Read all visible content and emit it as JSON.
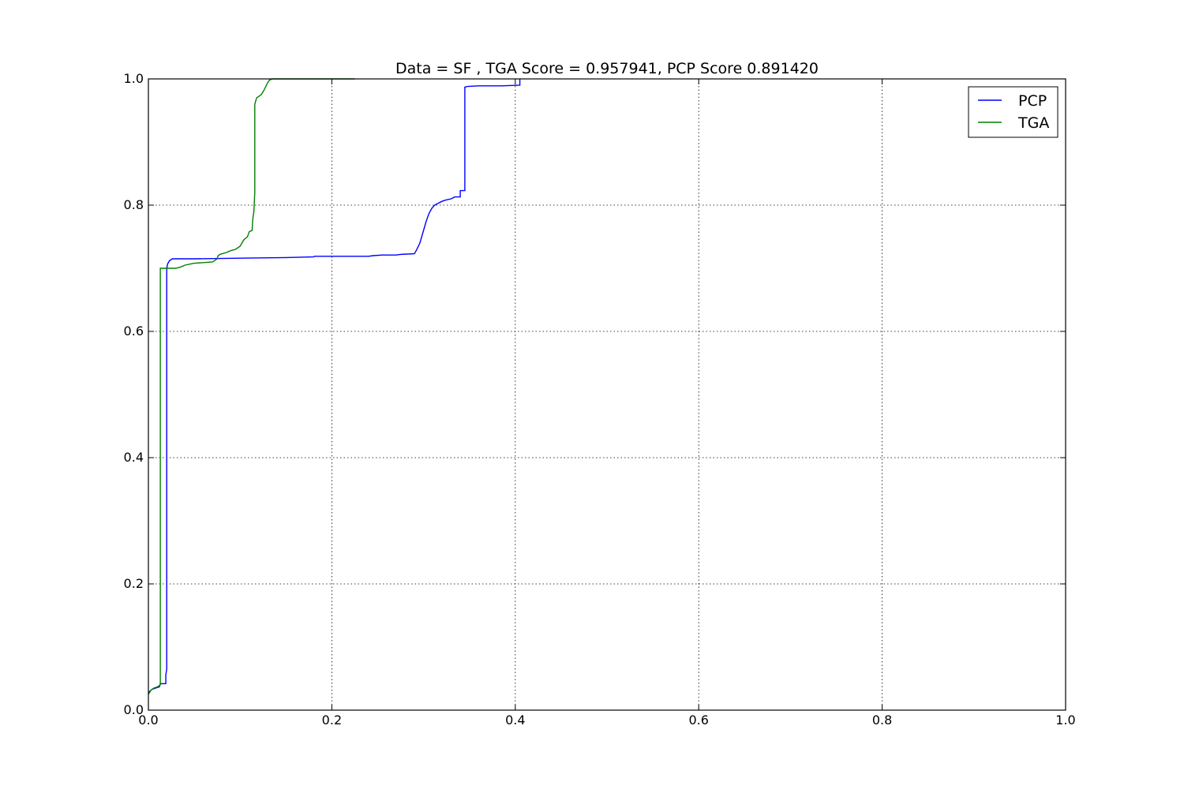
{
  "chart_data": {
    "type": "line",
    "title": "Data = SF , TGA Score = 0.957941, PCP Score 0.891420",
    "xlabel": "",
    "ylabel": "",
    "xlim": [
      0.0,
      1.0
    ],
    "ylim": [
      0.0,
      1.0
    ],
    "x_ticks": [
      "0.0",
      "0.2",
      "0.4",
      "0.6",
      "0.8",
      "1.0"
    ],
    "y_ticks": [
      "0.0",
      "0.2",
      "0.4",
      "0.6",
      "0.8",
      "1.0"
    ],
    "grid": true,
    "legend_position": "top-right",
    "legend": [
      "PCP",
      "TGA"
    ],
    "series": [
      {
        "name": "PCP",
        "color": "#0000ff",
        "points": [
          [
            0.0,
            0.028
          ],
          [
            0.004,
            0.033
          ],
          [
            0.008,
            0.035
          ],
          [
            0.012,
            0.037
          ],
          [
            0.013,
            0.042
          ],
          [
            0.019,
            0.042
          ],
          [
            0.019,
            0.056
          ],
          [
            0.02,
            0.065
          ],
          [
            0.02,
            0.7
          ],
          [
            0.021,
            0.707
          ],
          [
            0.023,
            0.712
          ],
          [
            0.026,
            0.715
          ],
          [
            0.05,
            0.715
          ],
          [
            0.1,
            0.716
          ],
          [
            0.15,
            0.717
          ],
          [
            0.18,
            0.718
          ],
          [
            0.181,
            0.719
          ],
          [
            0.24,
            0.719
          ],
          [
            0.245,
            0.72
          ],
          [
            0.255,
            0.721
          ],
          [
            0.27,
            0.721
          ],
          [
            0.275,
            0.722
          ],
          [
            0.29,
            0.723
          ],
          [
            0.292,
            0.728
          ],
          [
            0.296,
            0.74
          ],
          [
            0.3,
            0.76
          ],
          [
            0.303,
            0.775
          ],
          [
            0.306,
            0.787
          ],
          [
            0.309,
            0.795
          ],
          [
            0.312,
            0.8
          ],
          [
            0.316,
            0.803
          ],
          [
            0.32,
            0.806
          ],
          [
            0.324,
            0.808
          ],
          [
            0.33,
            0.81
          ],
          [
            0.334,
            0.813
          ],
          [
            0.34,
            0.813
          ],
          [
            0.34,
            0.823
          ],
          [
            0.345,
            0.823
          ],
          [
            0.345,
            0.987
          ],
          [
            0.348,
            0.988
          ],
          [
            0.36,
            0.989
          ],
          [
            0.385,
            0.989
          ],
          [
            0.405,
            0.99
          ],
          [
            0.405,
            1.0
          ]
        ]
      },
      {
        "name": "TGA",
        "color": "#008000",
        "points": [
          [
            0.0,
            0.025
          ],
          [
            0.003,
            0.032
          ],
          [
            0.006,
            0.035
          ],
          [
            0.01,
            0.037
          ],
          [
            0.013,
            0.04
          ],
          [
            0.013,
            0.7
          ],
          [
            0.02,
            0.7
          ],
          [
            0.03,
            0.7
          ],
          [
            0.035,
            0.702
          ],
          [
            0.04,
            0.705
          ],
          [
            0.05,
            0.708
          ],
          [
            0.06,
            0.709
          ],
          [
            0.07,
            0.71
          ],
          [
            0.072,
            0.712
          ],
          [
            0.075,
            0.715
          ],
          [
            0.076,
            0.72
          ],
          [
            0.078,
            0.722
          ],
          [
            0.085,
            0.725
          ],
          [
            0.09,
            0.728
          ],
          [
            0.095,
            0.73
          ],
          [
            0.1,
            0.735
          ],
          [
            0.104,
            0.745
          ],
          [
            0.108,
            0.75
          ],
          [
            0.11,
            0.758
          ],
          [
            0.113,
            0.76
          ],
          [
            0.114,
            0.78
          ],
          [
            0.115,
            0.79
          ],
          [
            0.116,
            0.82
          ],
          [
            0.116,
            0.96
          ],
          [
            0.117,
            0.965
          ],
          [
            0.118,
            0.97
          ],
          [
            0.12,
            0.972
          ],
          [
            0.123,
            0.975
          ],
          [
            0.126,
            0.982
          ],
          [
            0.128,
            0.988
          ],
          [
            0.13,
            0.994
          ],
          [
            0.132,
            0.998
          ],
          [
            0.135,
            1.0
          ],
          [
            0.225,
            1.0
          ]
        ]
      }
    ]
  }
}
